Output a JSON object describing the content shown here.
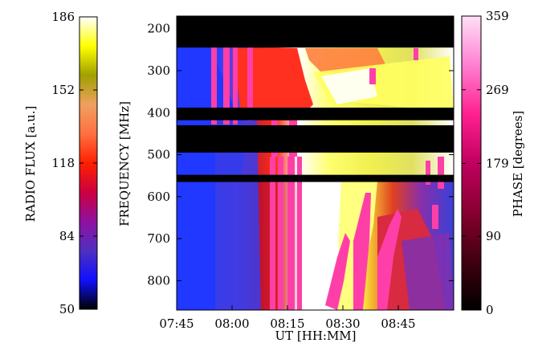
{
  "chart_data": {
    "type": "heatmap",
    "title": "",
    "xlabel": "UT [HH:MM]",
    "ylabel": "FREQUENCY [MHz]",
    "x_ticks": [
      "07:45",
      "08:00",
      "08:15",
      "08:30",
      "08:45"
    ],
    "x_range": [
      "07:45",
      "09:00"
    ],
    "y_ticks": [
      200,
      300,
      400,
      500,
      600,
      700,
      800
    ],
    "y_range": [
      170,
      870
    ],
    "y_inverted": true,
    "left_colorbar": {
      "label": "RADIO FLUX [a.u.]",
      "ticks": [
        50,
        84,
        118,
        152,
        186
      ],
      "range": [
        50,
        186
      ],
      "colors": [
        "#000000",
        "#1010ff",
        "#5030c0",
        "#9010a0",
        "#cc0040",
        "#ff2000",
        "#ff7040",
        "#f0a060",
        "#a0a000",
        "#ffff00",
        "#ffffff"
      ]
    },
    "right_colorbar": {
      "label": "PHASE [degrees]",
      "ticks": [
        0,
        90,
        179,
        269,
        359
      ],
      "range": [
        0,
        359
      ],
      "colors": [
        "#000000",
        "#400010",
        "#880030",
        "#c00060",
        "#ff2090",
        "#ff80d0",
        "#ffe0f8"
      ]
    },
    "masked_bands_mhz": [
      [
        170,
        245
      ],
      [
        388,
        418
      ],
      [
        430,
        495
      ],
      [
        548,
        565
      ]
    ]
  }
}
